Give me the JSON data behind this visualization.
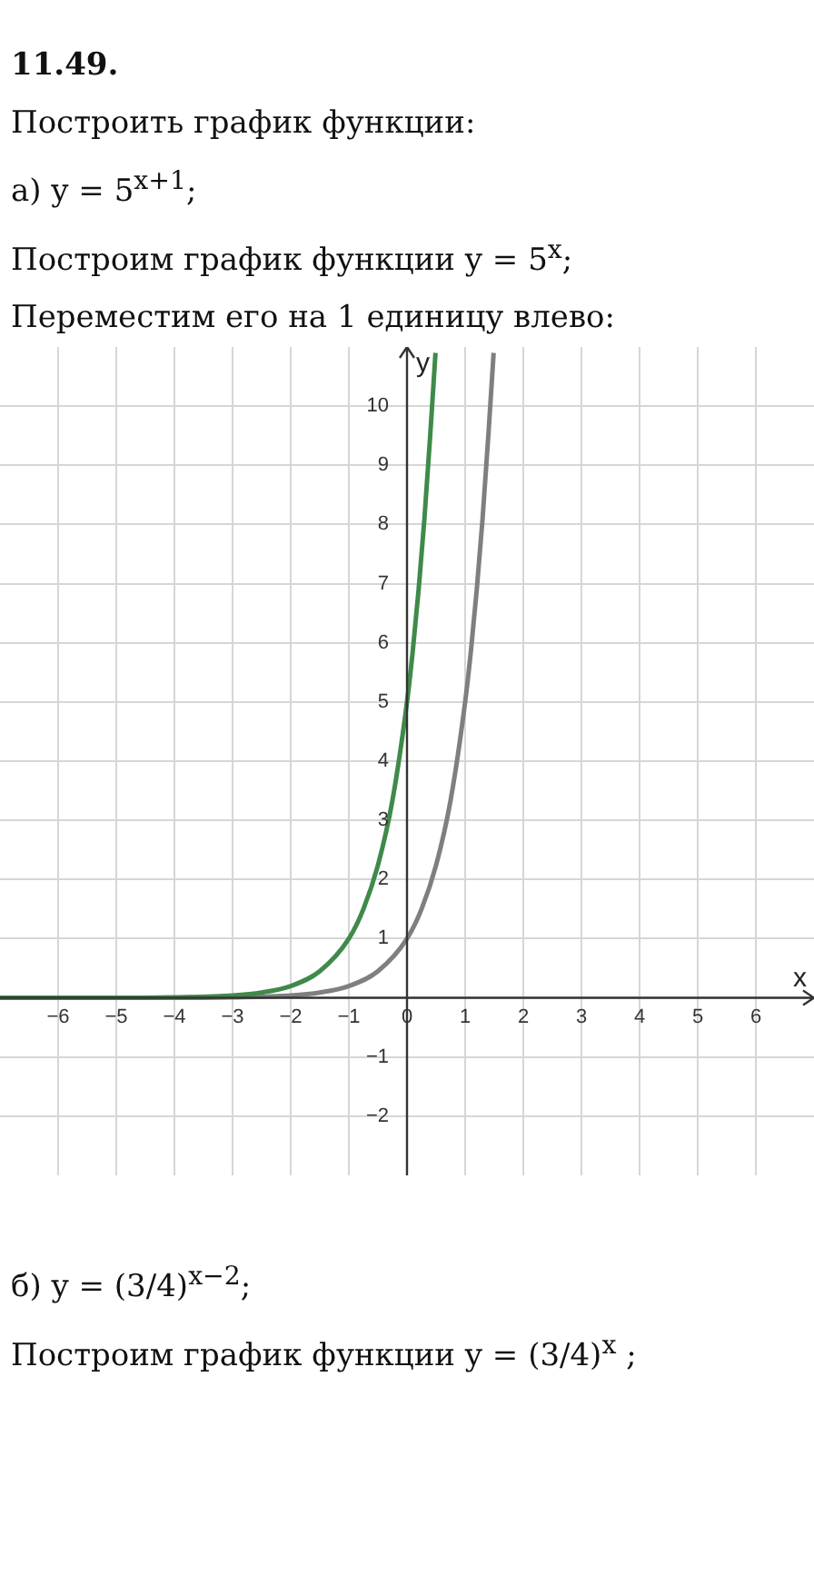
{
  "chart_data": {
    "type": "line",
    "title": "11.49.",
    "annotations": [
      "Построить график функции:",
      "а) y = 5$^{x+1}$;",
      "Построим график функции y = 5$^{x}$;",
      "Переместим его на 1 единицу влево:",
      "б) y = (3/4)$^{x−2}$;",
      "Построим график функции y = (3/4)$^{x}$ ;"
    ],
    "xlabel": "x",
    "ylabel": "y",
    "series": [
      {
        "color": "#3f8a4a",
        "x": [
          -7,
          -6,
          -5,
          -4,
          -3,
          -2.5,
          -2,
          -1.5,
          -1,
          -0.75,
          -0.5,
          -0.25,
          0,
          0.1,
          0.2,
          0.3,
          0.4,
          0.49
        ],
        "values": [
          0,
          0,
          0,
          0.01,
          0.04,
          0.09,
          0.2,
          0.45,
          1,
          1.5,
          2.24,
          3.34,
          5,
          5.87,
          6.9,
          8.1,
          9.52,
          10.9
        ]
      },
      {
        "color": "#7f7f7f",
        "x": [
          -7,
          -6,
          -5,
          -4,
          -3,
          -2,
          -1.5,
          -1,
          -0.5,
          0,
          0.25,
          0.5,
          0.75,
          1,
          1.1,
          1.2,
          1.3,
          1.4,
          1.49
        ],
        "values": [
          0,
          0,
          0,
          0,
          0.01,
          0.04,
          0.09,
          0.2,
          0.45,
          1,
          1.5,
          2.24,
          3.34,
          5,
          5.87,
          6.9,
          8.1,
          9.52,
          10.9
        ]
      }
    ],
    "xlim": [
      -7,
      7
    ],
    "ylim": [
      -3,
      11
    ],
    "xticks": [
      -6,
      -5,
      -4,
      -3,
      -2,
      -1,
      0,
      1,
      2,
      3,
      4,
      5,
      6
    ],
    "yticks": [
      -2,
      -1,
      {
        "value": 0,
        "label": null
      },
      1,
      2,
      3,
      4,
      5,
      6,
      7,
      8,
      9,
      10
    ],
    "grid": true,
    "legend": false,
    "marker": "none",
    "line_style": "solid"
  }
}
